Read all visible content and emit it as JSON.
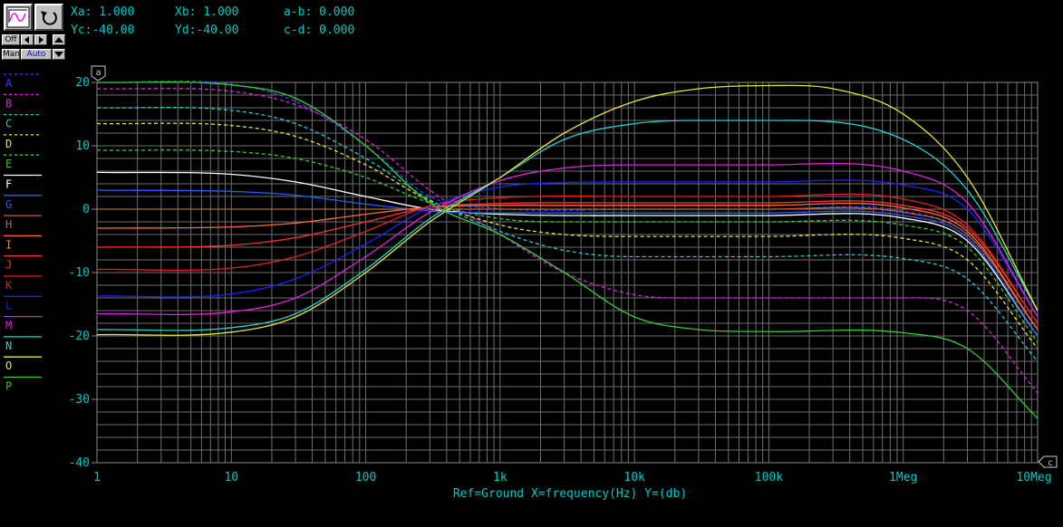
{
  "toolbar": {
    "off_label": "Off",
    "man_label": "Man",
    "auto_label": "Auto",
    "icons": [
      "waveform-icon",
      "undo-icon",
      "left-arrow-icon",
      "right-arrow-icon",
      "up-arrow-icon",
      "down-arrow-icon"
    ]
  },
  "readouts": {
    "xa": "Xa: 1.000",
    "xb": "Xb: 1.000",
    "ab": "a-b: 0.000",
    "yc": "Yc:-40.00",
    "yd": "Yd:-40.00",
    "cd": "c-d: 0.000"
  },
  "cursor_markers": {
    "a": "a",
    "c": "c"
  },
  "colors": {
    "background": "#000000",
    "axis_text": "#00c8c8",
    "grid": "#6e6e6e"
  },
  "chart_data": {
    "type": "line",
    "title": "",
    "xlabel": "Ref=Ground  X=frequency(Hz) Y=(db)",
    "ylabel": "",
    "x_scale": "log",
    "xlim": [
      1,
      10000000
    ],
    "ylim": [
      -40,
      20
    ],
    "grid": true,
    "legend_placement": "left",
    "x_ticks": [
      {
        "value": 1,
        "label": "1"
      },
      {
        "value": 10,
        "label": "10"
      },
      {
        "value": 100,
        "label": "100"
      },
      {
        "value": 1000,
        "label": "1k"
      },
      {
        "value": 10000,
        "label": "10k"
      },
      {
        "value": 100000,
        "label": "100k"
      },
      {
        "value": 1000000,
        "label": "1Meg"
      },
      {
        "value": 10000000,
        "label": "10Meg"
      }
    ],
    "y_ticks": [
      {
        "value": 20,
        "label": "20"
      },
      {
        "value": 10,
        "label": "10"
      },
      {
        "value": 0,
        "label": "0"
      },
      {
        "value": -10,
        "label": "-10"
      },
      {
        "value": -20,
        "label": "-20"
      },
      {
        "value": -30,
        "label": "-30"
      },
      {
        "value": -40,
        "label": "-40"
      }
    ],
    "series": [
      {
        "name": "A",
        "color": "#3c3cff",
        "dashed": true,
        "x": [
          1,
          10,
          30,
          100,
          300,
          1000,
          10000,
          100000,
          1000000,
          3000000,
          10000000
        ],
        "y": [
          20,
          19.7,
          17,
          10,
          2,
          0.1,
          0,
          0,
          -0.3,
          -4,
          -19
        ]
      },
      {
        "name": "B",
        "color": "#e020e0",
        "dashed": true,
        "x": [
          1,
          10,
          30,
          100,
          300,
          1000,
          3000,
          10000,
          30000,
          100000,
          1000000,
          3000000,
          10000000
        ],
        "y": [
          19,
          18.6,
          16.5,
          11,
          3,
          -4,
          -10,
          -13.5,
          -14,
          -14,
          -14,
          -16,
          -29
        ]
      },
      {
        "name": "C",
        "color": "#20d0d0",
        "dashed": true,
        "x": [
          1,
          10,
          30,
          100,
          300,
          1000,
          3000,
          10000,
          100000,
          1000000,
          3000000,
          10000000
        ],
        "y": [
          16,
          15.6,
          13.5,
          8,
          1.5,
          -3.5,
          -6.5,
          -7.5,
          -7.5,
          -7.8,
          -11,
          -24
        ]
      },
      {
        "name": "D",
        "color": "#e8e830",
        "dashed": true,
        "x": [
          1,
          10,
          30,
          100,
          300,
          1000,
          3000,
          10000,
          100000,
          1000000,
          3000000,
          10000000
        ],
        "y": [
          13.5,
          13.2,
          11.5,
          7,
          1.3,
          -2.5,
          -4,
          -4.3,
          -4.3,
          -4.6,
          -8,
          -22
        ]
      },
      {
        "name": "E",
        "color": "#30d030",
        "dashed": true,
        "x": [
          1,
          10,
          30,
          100,
          300,
          1000,
          3000,
          10000,
          100000,
          1000000,
          3000000,
          10000000
        ],
        "y": [
          9.3,
          9.1,
          8,
          5,
          1,
          -1.5,
          -2,
          -2,
          -2,
          -2.5,
          -6,
          -21
        ]
      },
      {
        "name": "F",
        "color": "#ffffff",
        "dashed": false,
        "x": [
          1,
          10,
          30,
          100,
          300,
          1000,
          10000,
          100000,
          1000000,
          3000000,
          10000000
        ],
        "y": [
          5.8,
          5.5,
          4.3,
          2,
          0,
          -0.8,
          -1,
          -1,
          -1.4,
          -5,
          -20
        ]
      },
      {
        "name": "G",
        "color": "#2060ff",
        "dashed": false,
        "x": [
          1,
          10,
          30,
          100,
          300,
          1000,
          10000,
          100000,
          1000000,
          3000000,
          10000000
        ],
        "y": [
          3,
          2.8,
          2.2,
          0.8,
          -0.3,
          -0.6,
          -0.6,
          -0.6,
          -1,
          -4.5,
          -20
        ]
      },
      {
        "name": "H",
        "color": "#c06030",
        "dashed": false,
        "x": [
          1,
          100,
          1000,
          100000,
          1000000,
          3000000,
          10000000
        ],
        "y": [
          0,
          0,
          0,
          0,
          -0.5,
          -4,
          -19
        ]
      },
      {
        "name": "I",
        "color": "#ff7030",
        "dashed": false,
        "x": [
          1,
          10,
          30,
          100,
          300,
          1000,
          10000,
          100000,
          1000000,
          3000000,
          10000000
        ],
        "y": [
          -3,
          -2.8,
          -2.2,
          -0.8,
          0.3,
          0.6,
          0.6,
          0.6,
          0.2,
          -3.5,
          -19
        ]
      },
      {
        "name": "J",
        "color": "#ff3030",
        "dashed": false,
        "x": [
          1,
          10,
          30,
          100,
          300,
          1000,
          10000,
          100000,
          1000000,
          3000000,
          10000000
        ],
        "y": [
          -6,
          -5.7,
          -4.5,
          -2,
          0.3,
          0.9,
          1,
          1,
          0.6,
          -3,
          -18
        ]
      },
      {
        "name": "K",
        "color": "#e02020",
        "dashed": false,
        "x": [
          1,
          10,
          30,
          100,
          300,
          1000,
          10000,
          100000,
          1000000,
          3000000,
          10000000
        ],
        "y": [
          -9.5,
          -9.3,
          -7.5,
          -3.5,
          0.5,
          1.8,
          2,
          2,
          1.6,
          -2.5,
          -18
        ]
      },
      {
        "name": "L",
        "color": "#2020ff",
        "dashed": false,
        "x": [
          1,
          10,
          30,
          100,
          300,
          1000,
          3000,
          10000,
          100000,
          1000000,
          3000000,
          10000000
        ],
        "y": [
          -13.7,
          -13.4,
          -11,
          -5.5,
          0.3,
          3.5,
          4.2,
          4.3,
          4.3,
          3.8,
          0,
          -17
        ]
      },
      {
        "name": "M",
        "color": "#e020e0",
        "dashed": false,
        "x": [
          1,
          10,
          30,
          100,
          300,
          1000,
          3000,
          10000,
          100000,
          1000000,
          3000000,
          10000000
        ],
        "y": [
          -16.5,
          -16.2,
          -14,
          -7.5,
          -0.5,
          4.5,
          6.5,
          7,
          7,
          6,
          1,
          -17
        ]
      },
      {
        "name": "N",
        "color": "#20d0d0",
        "dashed": false,
        "x": [
          1,
          10,
          30,
          100,
          300,
          1000,
          3000,
          10000,
          30000,
          100000,
          1000000,
          3000000,
          10000000
        ],
        "y": [
          -19,
          -18.7,
          -16.5,
          -9.5,
          -1.5,
          5,
          11,
          13.5,
          14,
          14,
          11,
          3,
          -16
        ]
      },
      {
        "name": "O",
        "color": "#e8e830",
        "dashed": false,
        "x": [
          1,
          10,
          30,
          100,
          300,
          1000,
          3000,
          10000,
          30000,
          100000,
          300000,
          1000000,
          3000000,
          10000000
        ],
        "y": [
          -19.8,
          -19.4,
          -17,
          -10,
          -2,
          5,
          12,
          17,
          19,
          19.5,
          19,
          15,
          5,
          -16
        ]
      },
      {
        "name": "P",
        "color": "#30d030",
        "dashed": false,
        "x": [
          1,
          10,
          30,
          100,
          300,
          1000,
          3000,
          10000,
          30000,
          100000,
          1000000,
          3000000,
          10000000
        ],
        "y": [
          20,
          19.6,
          17.5,
          10,
          1,
          -4,
          -10,
          -17,
          -19,
          -19.3,
          -19.5,
          -22,
          -33
        ]
      }
    ]
  }
}
